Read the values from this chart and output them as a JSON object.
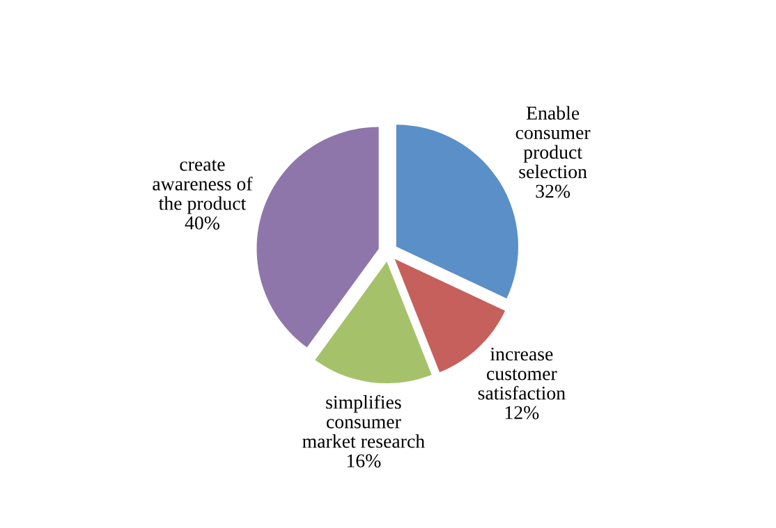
{
  "chart_data": {
    "type": "pie",
    "categories": [
      "Enable\nconsumer\nproduct\nselection",
      "increase\ncustomer\nsatisfaction",
      "simplifies\nconsumer\nmarket research",
      "create\nawareness of\nthe product"
    ],
    "values": [
      32,
      12,
      16,
      40
    ],
    "colors": [
      "#5b8fc7",
      "#c5605c",
      "#a5c26a",
      "#8f76aa"
    ],
    "value_labels": [
      "32%",
      "12%",
      "16%",
      "40%"
    ]
  }
}
